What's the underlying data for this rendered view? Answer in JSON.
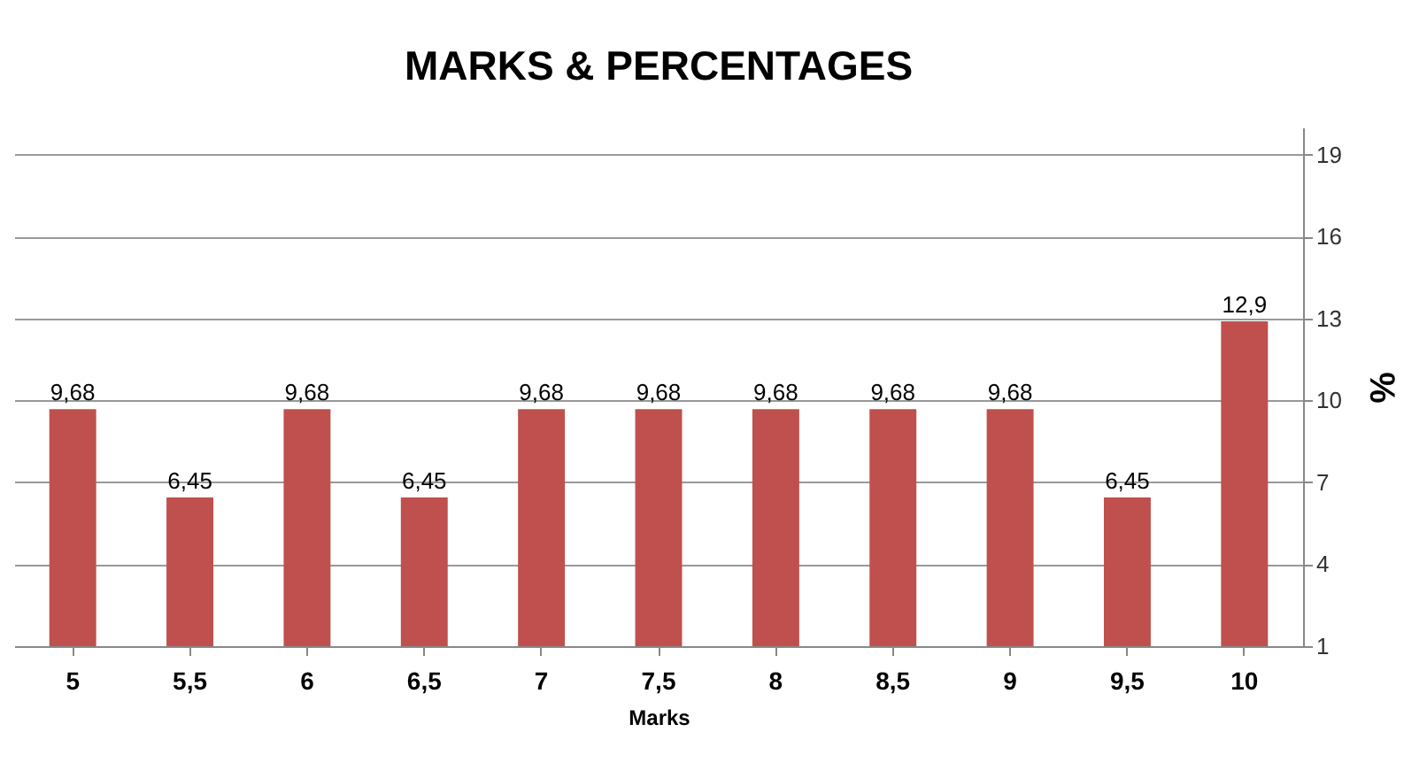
{
  "chart_data": {
    "type": "bar",
    "title": "MARKS & PERCENTAGES",
    "xlabel": "Marks",
    "ylabel": "%",
    "categories": [
      "5",
      "5,5",
      "6",
      "6,5",
      "7",
      "7,5",
      "8",
      "8,5",
      "9",
      "9,5",
      "10"
    ],
    "values": [
      9.68,
      6.45,
      9.68,
      6.45,
      9.68,
      9.68,
      9.68,
      9.68,
      9.68,
      6.45,
      12.9
    ],
    "value_labels": [
      "9,68",
      "6,45",
      "9,68",
      "6,45",
      "9,68",
      "9,68",
      "9,68",
      "9,68",
      "9,68",
      "6,45",
      "12,9"
    ],
    "color": "#c0504d",
    "ylim": [
      1,
      20
    ],
    "yticks": [
      1,
      4,
      7,
      10,
      13,
      16,
      19
    ],
    "grid": "y"
  }
}
